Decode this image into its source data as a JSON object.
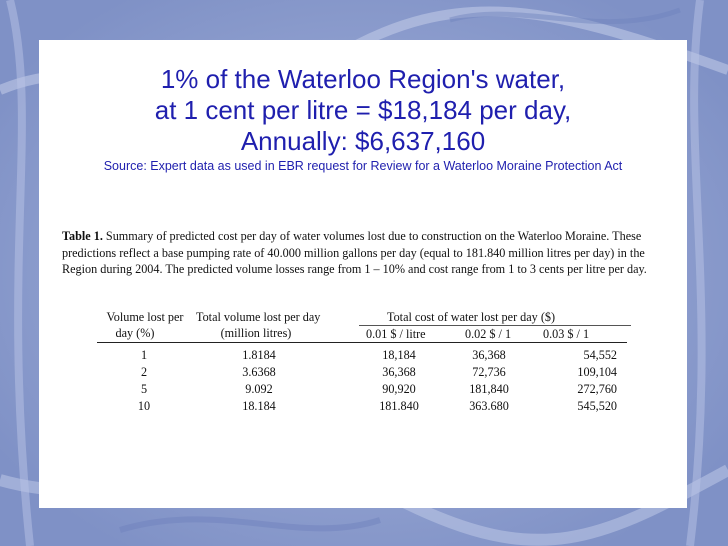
{
  "title": {
    "line1": "1% of the Waterloo Region's water,",
    "line2": "at 1 cent per litre = $18,184 per day,",
    "line3": "Annually: $6,637,160"
  },
  "source": "Source: Expert data as used in EBR request for Review for a Waterloo Moraine Protection Act",
  "table": {
    "caption_label": "Table 1.",
    "caption_text": " Summary of predicted cost per day of water volumes lost due to construction on the Waterloo Moraine.  These predictions reflect a base pumping rate of 40.000 million gallons per day (equal to 181.840 million litres per day) in the Region during 2004. The predicted volume losses range from 1 – 10% and cost range from 1 to 3 cents per litre per day.",
    "headers": {
      "col1_line1": "Volume lost per",
      "col1_line2": "day (%)",
      "col2_line1": "Total volume lost per day",
      "col2_line2": "(million litres)",
      "group": "Total cost of water lost per day ($)",
      "sub1": "0.01 $ / litre",
      "sub2": "0.02 $ / 1",
      "sub3": "0.03 $ / 1"
    },
    "rows": [
      [
        "1",
        "1.8184",
        "18,184",
        "36,368",
        "54,552"
      ],
      [
        "2",
        "3.6368",
        "36,368",
        "72,736",
        "109,104"
      ],
      [
        "5",
        "9.092",
        "90,920",
        "181,840",
        "272,760"
      ],
      [
        "10",
        "18.184",
        "181.840",
        "363.680",
        "545,520"
      ]
    ]
  }
}
